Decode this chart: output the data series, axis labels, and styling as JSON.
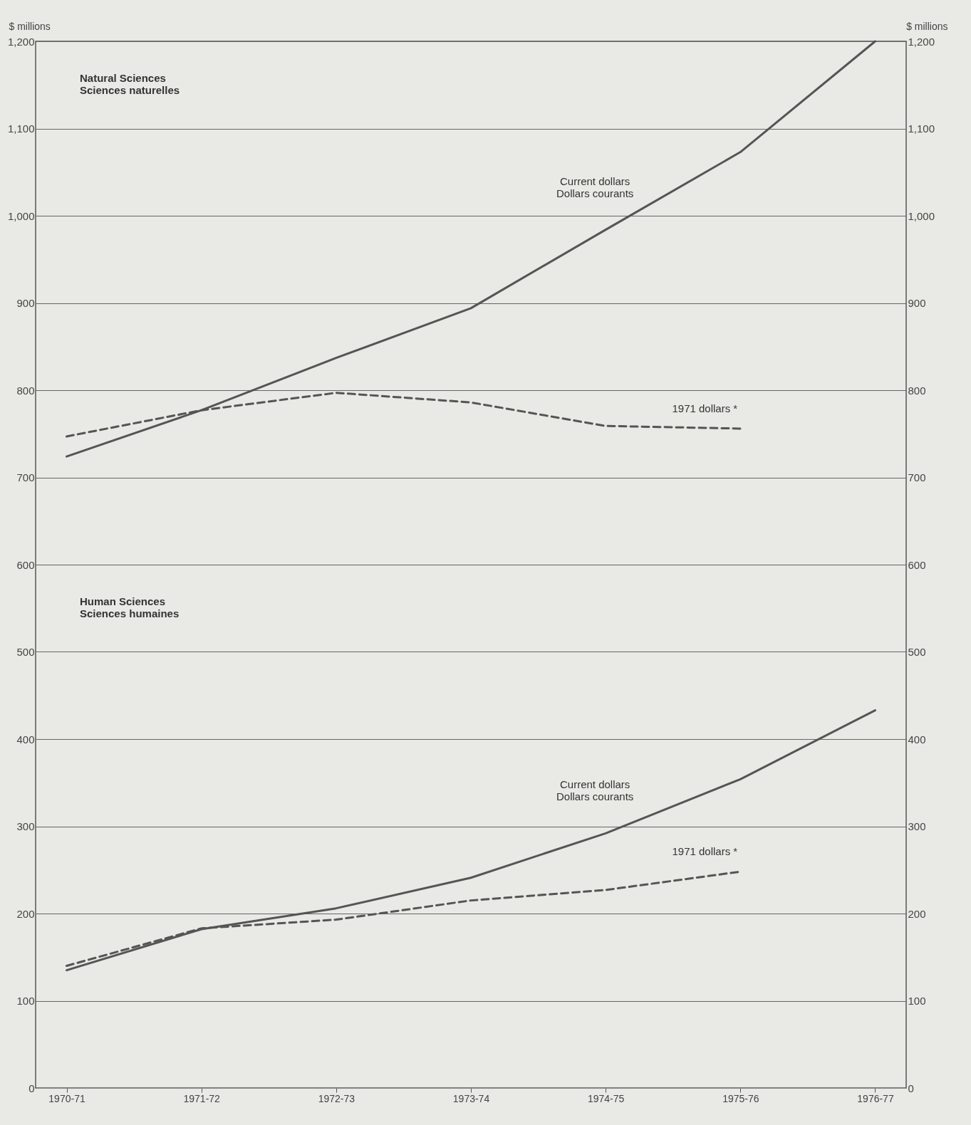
{
  "chart_data": {
    "type": "line",
    "ylabel": "$ millions",
    "y2label": "$ millions",
    "categories": [
      "1970-71",
      "1971-72",
      "1972-73",
      "1973-74",
      "1974-75",
      "1975-76",
      "1976-77"
    ],
    "series": [
      {
        "name": "Current dollars\nDollars courants",
        "color": "#555555",
        "line_style": "solid",
        "values": [
          724,
          777,
          837,
          894,
          984,
          1073,
          1200
        ]
      },
      {
        "name": "1971 dollars *",
        "color": "#555555",
        "line_style": "dashed",
        "values": [
          747,
          777,
          797,
          786,
          759,
          756,
          null
        ]
      },
      {
        "name": "Current dollars\nDollars courants",
        "color": "#555555",
        "line_style": "solid",
        "values": [
          135,
          182,
          206,
          241,
          292,
          354,
          433
        ]
      },
      {
        "name": "1971 dollars *",
        "color": "#555555",
        "line_style": "dashed",
        "values": [
          140,
          183,
          193,
          215,
          227,
          248,
          null
        ]
      }
    ],
    "ylim": [
      0,
      1200
    ],
    "yticks": [
      0,
      100,
      200,
      300,
      400,
      500,
      600,
      700,
      800,
      900,
      {
        "value": 1000,
        "label": "1,000"
      },
      {
        "value": 1100,
        "label": "1,100"
      },
      {
        "value": 1200,
        "label": "1,200"
      }
    ],
    "y2lim": [
      0,
      1200
    ],
    "y2ticks": [
      0,
      100,
      200,
      300,
      400,
      500,
      600,
      700,
      800,
      900,
      {
        "value": 1000,
        "label": "1,000"
      },
      {
        "value": 1100,
        "label": "1,100"
      },
      {
        "value": 1200,
        "label": "1,200"
      }
    ],
    "annotations": [
      "Natural Sciences\nSciences naturelles",
      "Human Sciences\nSciences humaines"
    ],
    "grid": "y",
    "marker": "none"
  }
}
